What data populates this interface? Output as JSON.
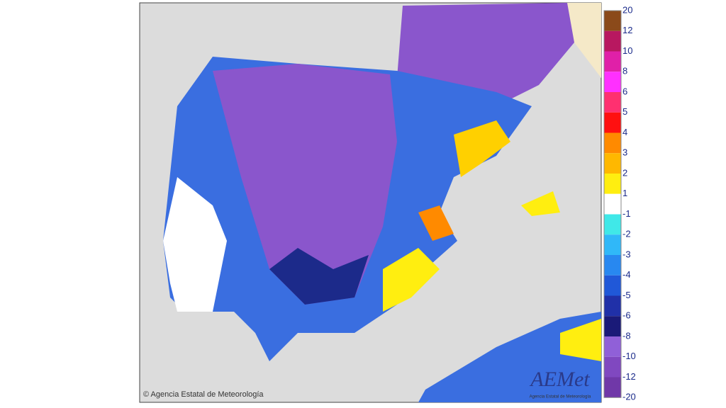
{
  "legend": {
    "labels": [
      "20",
      "12",
      "10",
      "8",
      "6",
      "5",
      "4",
      "3",
      "2",
      "1",
      "-1",
      "-2",
      "-3",
      "-4",
      "-5",
      "-6",
      "-8",
      "-10",
      "-12",
      "-20"
    ],
    "colors": [
      "#8b4a1a",
      "#b81860",
      "#e020a8",
      "#ff30ff",
      "#ff3070",
      "#ff1010",
      "#ff8a00",
      "#ffb800",
      "#ffee10",
      "#ffffff",
      "#40e8e8",
      "#30b8f8",
      "#2888f0",
      "#2058d8",
      "#2030a8",
      "#1a1a78",
      "#9060d8",
      "#8048c0",
      "#7038a8",
      "#6a3090"
    ]
  },
  "copyright": "© Agencia Estatal de Meteorología",
  "logo": {
    "name": "AEMet",
    "subtitle": "Agencia Estatal de Meteorología"
  }
}
